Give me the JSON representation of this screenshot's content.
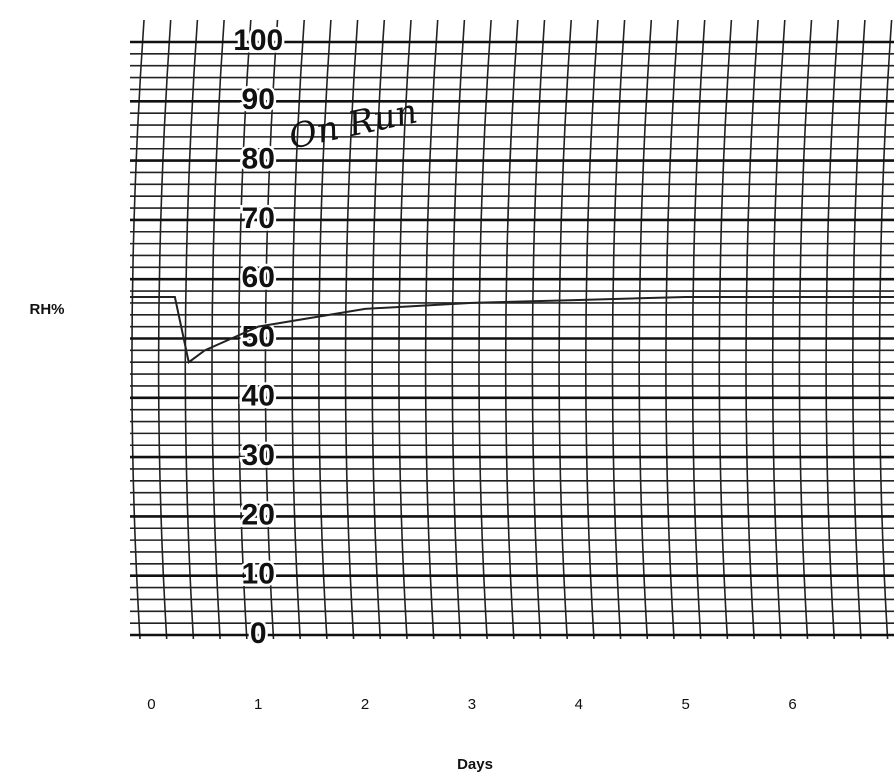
{
  "chart_data": {
    "type": "line",
    "x_label": "Days",
    "y_label": "RH%",
    "annotations": [
      "On Run"
    ],
    "x": [
      -0.2,
      0.22,
      0.35,
      0.5,
      1,
      2,
      3,
      4,
      5,
      6,
      6.95
    ],
    "series": [
      {
        "name": "RH",
        "color": "#222222",
        "values": [
          57,
          57,
          46,
          48,
          52,
          55,
          56,
          56.5,
          57,
          57,
          57
        ]
      }
    ],
    "xlim": [
      -0.2,
      6.95
    ],
    "xticks": [
      0,
      1,
      2,
      3,
      4,
      5,
      6
    ],
    "ylim": [
      0,
      100
    ],
    "yticks": [
      0,
      10,
      20,
      30,
      40,
      50,
      60,
      70,
      80,
      90,
      100
    ],
    "grid": true
  }
}
